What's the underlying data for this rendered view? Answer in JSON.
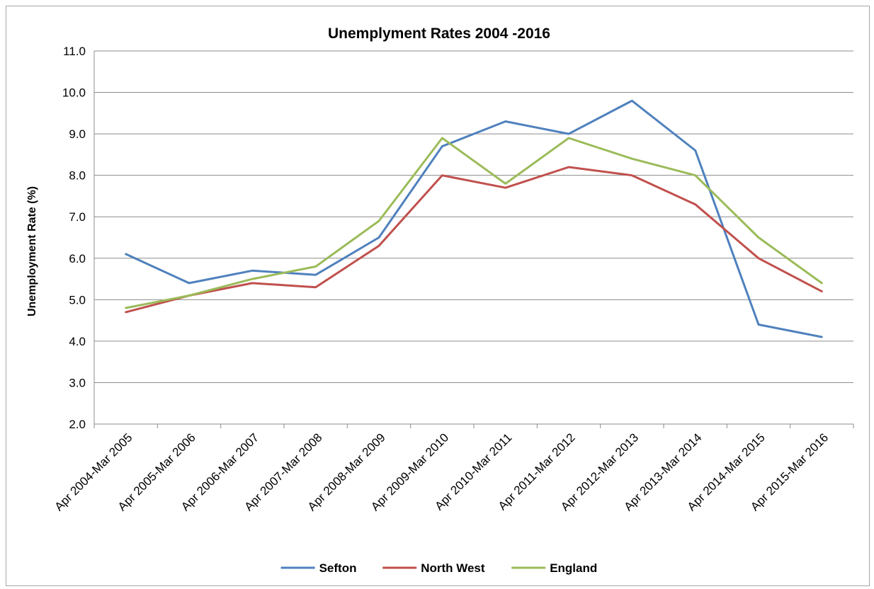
{
  "chart_data": {
    "type": "line",
    "title": "Unemplyment Rates 2004 -2016",
    "xlabel": "",
    "ylabel": "Unemployment Rate (%)",
    "ylim": [
      2.0,
      11.0
    ],
    "yticks": [
      "2.0",
      "3.0",
      "4.0",
      "5.0",
      "6.0",
      "7.0",
      "8.0",
      "9.0",
      "10.0",
      "11.0"
    ],
    "grid": true,
    "legend_position": "bottom",
    "categories": [
      "Apr 2004-Mar 2005",
      "Apr 2005-Mar 2006",
      "Apr 2006-Mar 2007",
      "Apr 2007-Mar 2008",
      "Apr 2008-Mar 2009",
      "Apr 2009-Mar 2010",
      "Apr 2010-Mar 2011",
      "Apr 2011-Mar 2012",
      "Apr 2012-Mar 2013",
      "Apr 2013-Mar 2014",
      "Apr 2014-Mar 2015",
      "Apr 2015-Mar 2016"
    ],
    "series": [
      {
        "name": "Sefton",
        "color": "#4F81BD",
        "values": [
          6.1,
          5.4,
          5.7,
          5.6,
          6.5,
          8.7,
          9.3,
          9.0,
          9.8,
          8.6,
          4.4,
          4.1
        ]
      },
      {
        "name": "North West",
        "color": "#C0504D",
        "values": [
          4.7,
          5.1,
          5.4,
          5.3,
          6.3,
          8.0,
          7.7,
          8.2,
          8.0,
          7.3,
          6.0,
          5.2
        ]
      },
      {
        "name": "England",
        "color": "#9BBB59",
        "values": [
          4.8,
          5.1,
          5.5,
          5.8,
          6.9,
          8.9,
          7.8,
          8.9,
          8.4,
          8.0,
          6.5,
          5.4
        ]
      }
    ]
  }
}
